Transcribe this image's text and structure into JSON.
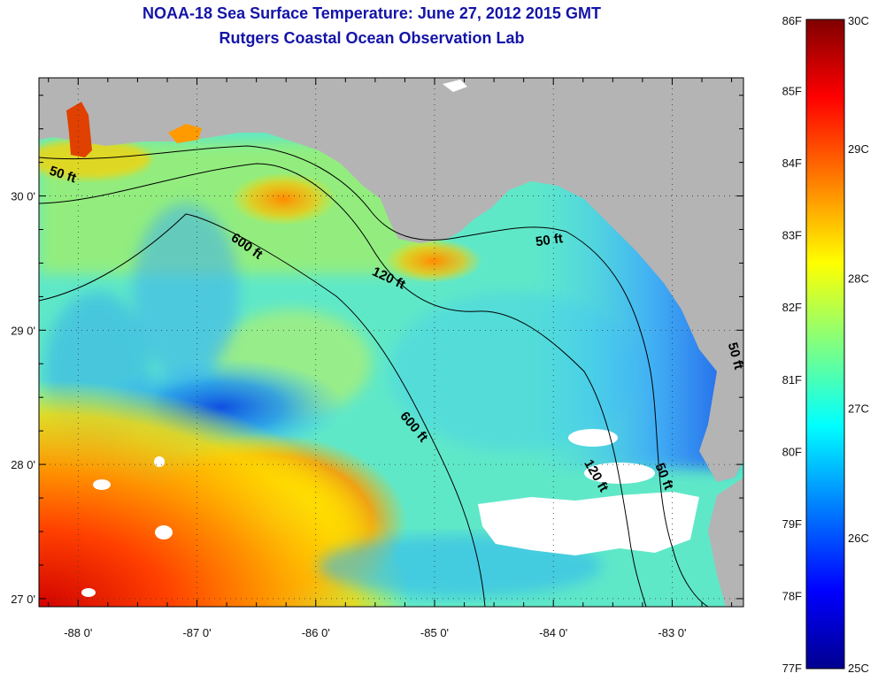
{
  "title": {
    "line1": "NOAA-18 Sea Surface Temperature:  June 27, 2012 2015 GMT",
    "line2": "Rutgers Coastal Ocean Observation Lab"
  },
  "map": {
    "lon_range": [
      -88.33,
      -82.4
    ],
    "lat_range": [
      26.94,
      30.88
    ],
    "lon_ticks": [
      -88,
      -87,
      -86,
      -85,
      -84,
      -83
    ],
    "lat_ticks": [
      27,
      28,
      29,
      30
    ],
    "lon_tick_labels": [
      "-88 0'",
      "-87 0'",
      "-86 0'",
      "-85 0'",
      "-84 0'",
      "-83 0'"
    ],
    "lat_tick_labels": [
      "27 0'",
      "28 0'",
      "29 0'",
      "30 0'"
    ],
    "land_color": "#b4b4b4",
    "gridlines": "dotted"
  },
  "contours": [
    {
      "label": "50 ft",
      "placements": [
        {
          "text": "50 ft",
          "lon": -88.14,
          "lat": 30.13,
          "angle": 18
        },
        {
          "text": "50 ft",
          "lon": -84.03,
          "lat": 29.64,
          "angle": -8
        },
        {
          "text": "50 ft",
          "lon": -83.1,
          "lat": 27.9,
          "angle": 68
        },
        {
          "text": "50 ft",
          "lon": -82.5,
          "lat": 28.8,
          "angle": 75
        }
      ]
    },
    {
      "label": "120 ft",
      "placements": [
        {
          "text": "120 ft",
          "lon": -85.4,
          "lat": 29.36,
          "angle": 25
        },
        {
          "text": "120 ft",
          "lon": -83.67,
          "lat": 27.9,
          "angle": 60
        }
      ]
    },
    {
      "label": "600 ft",
      "placements": [
        {
          "text": "600 ft",
          "lon": -86.6,
          "lat": 29.6,
          "angle": 35
        },
        {
          "text": "600 ft",
          "lon": -85.2,
          "lat": 28.26,
          "angle": 50
        }
      ]
    }
  ],
  "colorbar": {
    "celsius_range": [
      25,
      30
    ],
    "fahrenheit_labels": [
      "86F",
      "85F",
      "84F",
      "83F",
      "82F",
      "81F",
      "80F",
      "79F",
      "78F",
      "77F"
    ],
    "fahrenheit_values": [
      86,
      85,
      84,
      83,
      82,
      81,
      80,
      79,
      78,
      77
    ],
    "celsius_labels": [
      "30C",
      "29C",
      "28C",
      "27C",
      "26C",
      "25C"
    ],
    "celsius_values": [
      30,
      29,
      28,
      27,
      26,
      25
    ],
    "colormap": [
      "#00008f",
      "#0000ff",
      "#0080ff",
      "#00ffff",
      "#80ff80",
      "#ffff00",
      "#ff8000",
      "#ff0000",
      "#800000"
    ]
  }
}
